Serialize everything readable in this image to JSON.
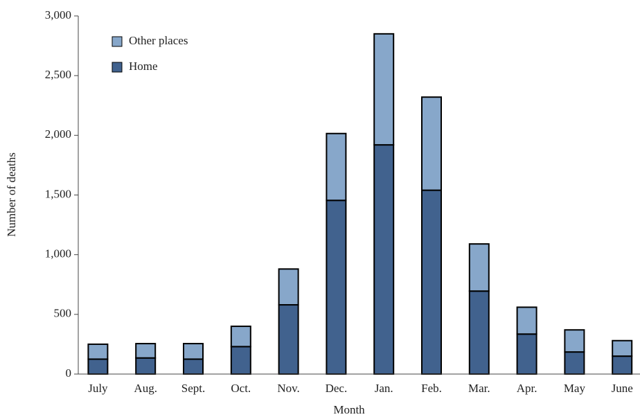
{
  "chart_data": {
    "type": "stacked_bar",
    "xlabel": "Month",
    "ylabel": "Number of deaths",
    "categories": [
      "July",
      "Aug.",
      "Sept.",
      "Oct.",
      "Nov.",
      "Dec.",
      "Jan.",
      "Feb.",
      "Mar.",
      "Apr.",
      "May",
      "June"
    ],
    "series": [
      {
        "name": "Home",
        "color": "#41628e",
        "values": [
          125,
          135,
          125,
          230,
          580,
          1455,
          1920,
          1540,
          695,
          335,
          185,
          150
        ]
      },
      {
        "name": "Other places",
        "color": "#87a7ca",
        "values": [
          125,
          120,
          130,
          170,
          300,
          560,
          930,
          780,
          395,
          225,
          185,
          130
        ]
      }
    ],
    "ylim": [
      0,
      3000
    ],
    "yticks": [
      0,
      500,
      {
        "value": 1000,
        "label": "1,000"
      },
      {
        "value": 1500,
        "label": "1,500"
      },
      {
        "value": 2000,
        "label": "2,000"
      },
      {
        "value": 2500,
        "label": "2,500"
      },
      {
        "value": 3000,
        "label": "3,000"
      }
    ],
    "legend": "upper left"
  }
}
